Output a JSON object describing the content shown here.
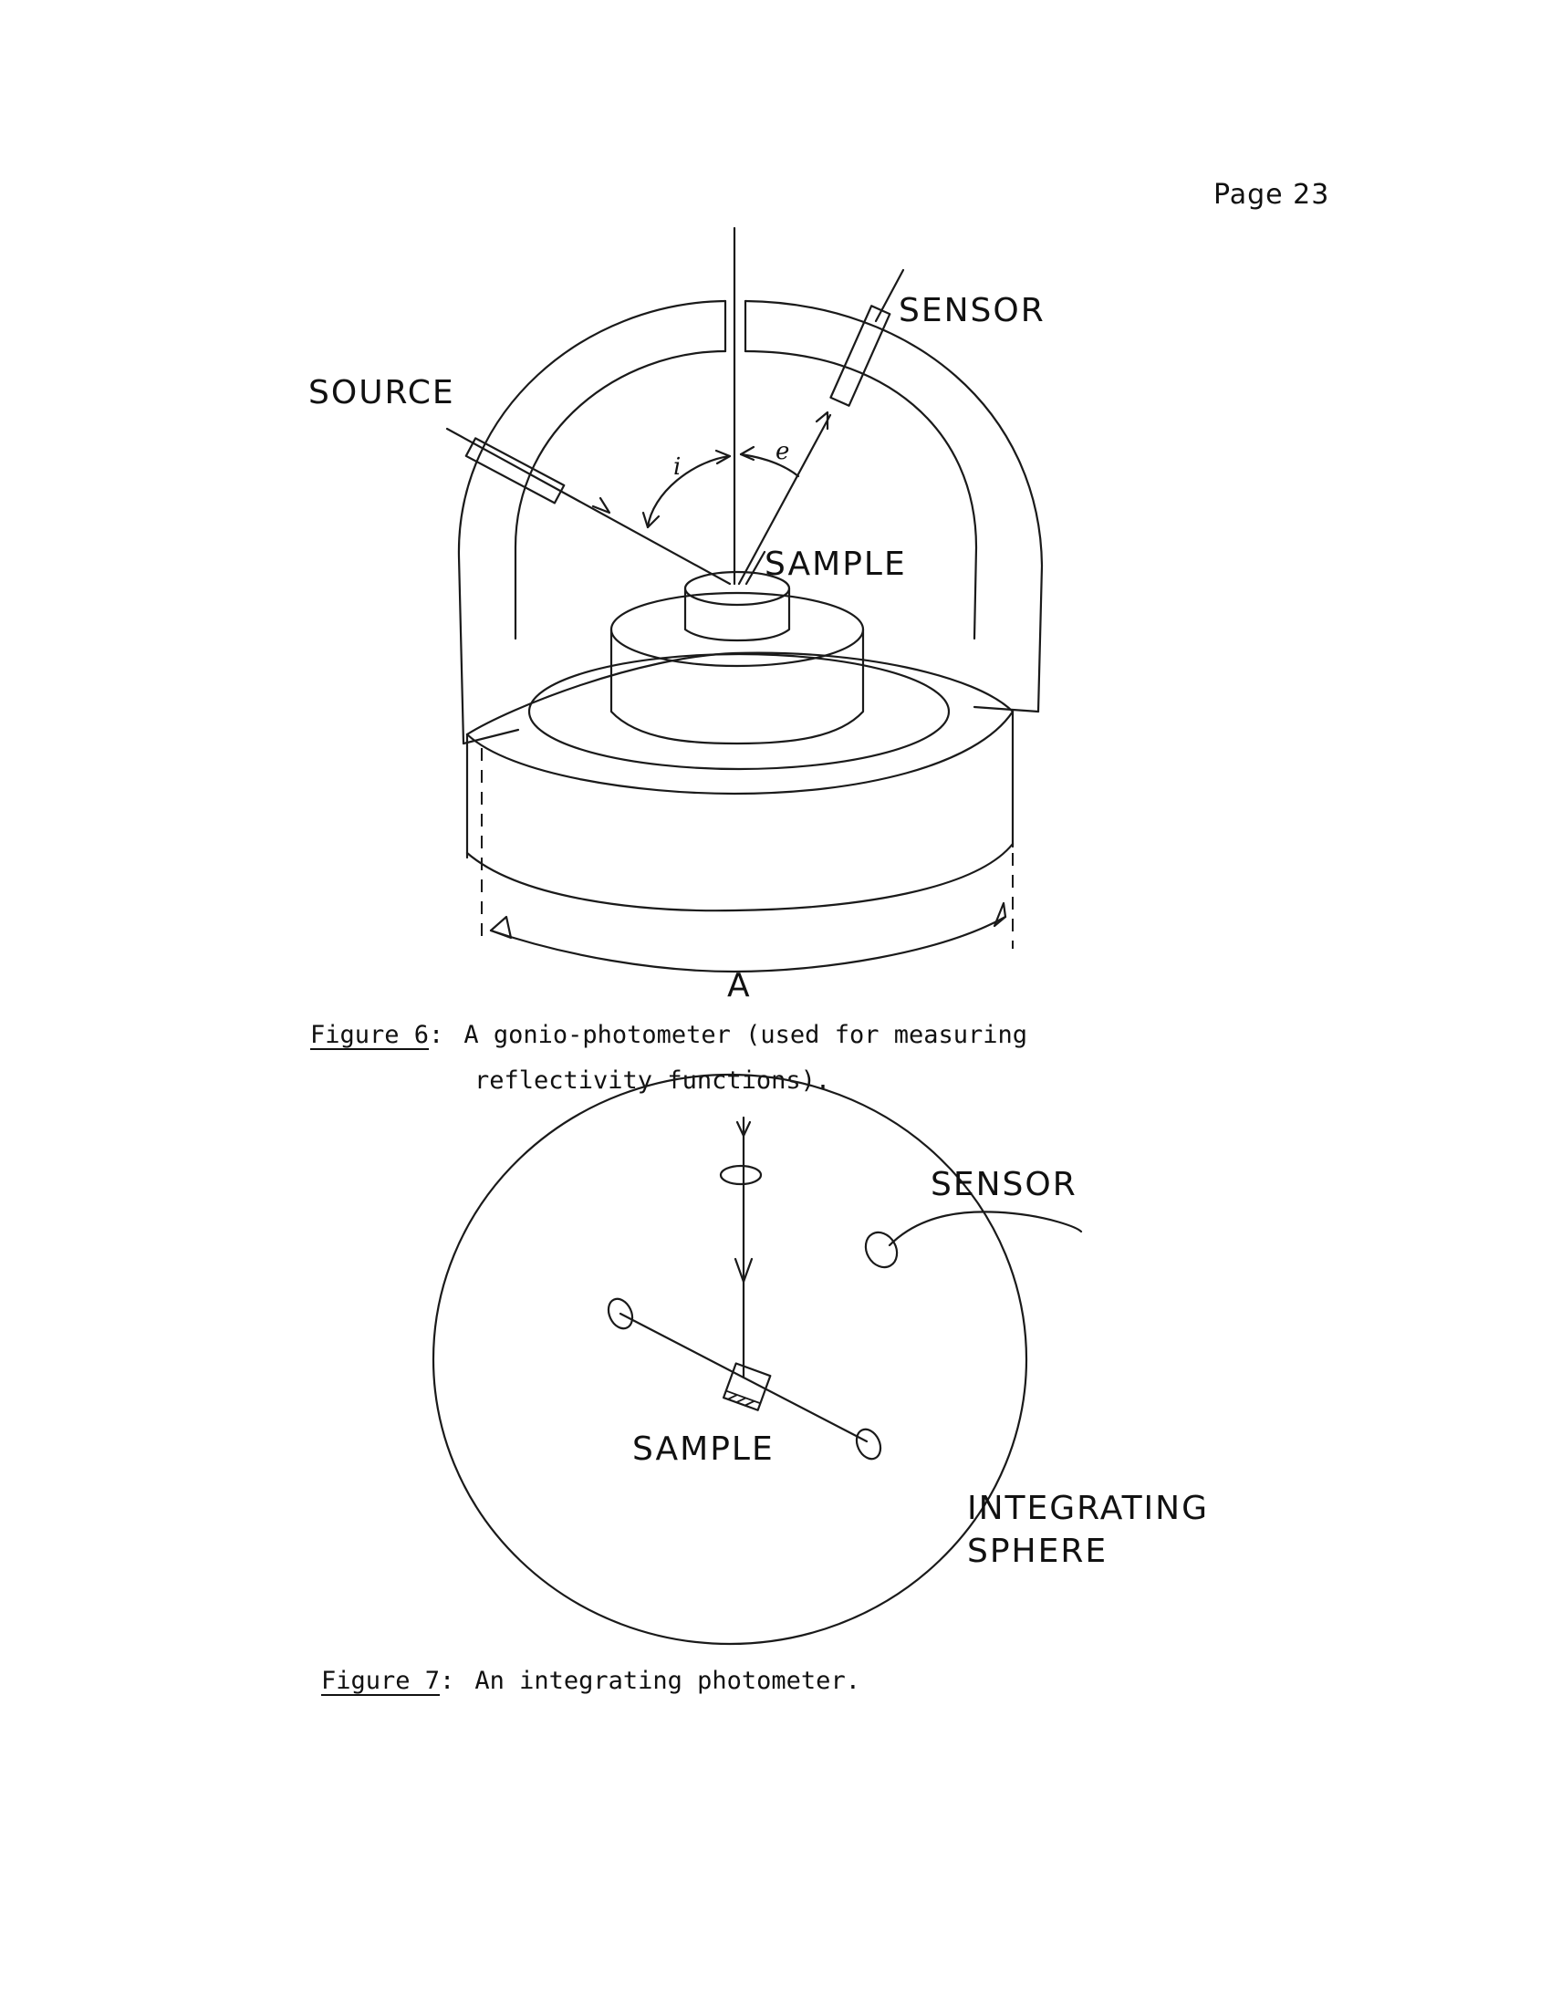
{
  "page": {
    "number_label": "Page 23"
  },
  "figure6": {
    "labels": {
      "source": "SOURCE",
      "sensor": "SENSOR",
      "sample": "SAMPLE",
      "angle_i": "i",
      "angle_e": "e",
      "axis_a": "A"
    },
    "caption": {
      "ref": "Figure 6",
      "line1": "A gonio-photometer (used for measuring",
      "line2": "reflectivity functions)."
    }
  },
  "figure7": {
    "labels": {
      "sensor": "SENSOR",
      "sample": "SAMPLE",
      "sphere_line1": "INTEGRATING",
      "sphere_line2": "SPHERE"
    },
    "caption": {
      "ref": "Figure 7",
      "text": "An integrating photometer."
    }
  }
}
